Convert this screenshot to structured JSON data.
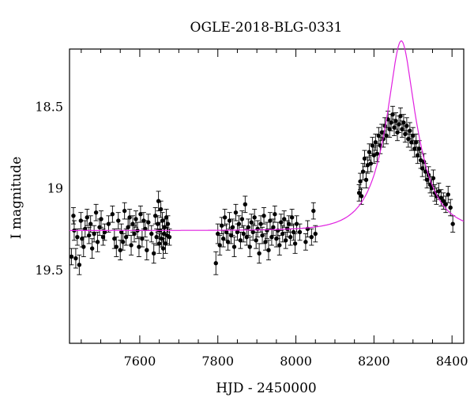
{
  "chart_data": {
    "type": "scatter",
    "title": "OGLE-2018-BLG-0331",
    "xlabel": "HJD - 2450000",
    "ylabel": "I magnitude",
    "xlim": [
      7420,
      8430
    ],
    "ylim": [
      19.95,
      18.15
    ],
    "y_inverted": true,
    "grid": false,
    "x_ticks": [
      7600,
      7800,
      8000,
      8200,
      8400
    ],
    "y_ticks": [
      18.5,
      19,
      19.5
    ],
    "x_tick_labels": [
      "7600",
      "7800",
      "8000",
      "8200",
      "8400"
    ],
    "y_tick_labels": [
      "18.5",
      "19",
      "19.5"
    ],
    "colors": {
      "points": "#000000",
      "model": "#e020e0"
    },
    "model": {
      "type": "microlensing",
      "t0": 8270,
      "u0": 0.36,
      "tE": 78,
      "baseline_mag": 19.26
    },
    "series": [
      {
        "type": "errorbar",
        "points": [
          {
            "x": 7425,
            "y": 19.42,
            "e": 0.05
          },
          {
            "x": 7430,
            "y": 19.17,
            "e": 0.05
          },
          {
            "x": 7432,
            "y": 19.26,
            "e": 0.06
          },
          {
            "x": 7436,
            "y": 19.43,
            "e": 0.06
          },
          {
            "x": 7440,
            "y": 19.3,
            "e": 0.05
          },
          {
            "x": 7445,
            "y": 19.47,
            "e": 0.06
          },
          {
            "x": 7449,
            "y": 19.2,
            "e": 0.05
          },
          {
            "x": 7452,
            "y": 19.31,
            "e": 0.05
          },
          {
            "x": 7456,
            "y": 19.36,
            "e": 0.06
          },
          {
            "x": 7460,
            "y": 19.25,
            "e": 0.05
          },
          {
            "x": 7465,
            "y": 19.18,
            "e": 0.05
          },
          {
            "x": 7470,
            "y": 19.29,
            "e": 0.05
          },
          {
            "x": 7474,
            "y": 19.22,
            "e": 0.05
          },
          {
            "x": 7478,
            "y": 19.37,
            "e": 0.06
          },
          {
            "x": 7483,
            "y": 19.28,
            "e": 0.05
          },
          {
            "x": 7488,
            "y": 19.15,
            "e": 0.05
          },
          {
            "x": 7492,
            "y": 19.33,
            "e": 0.06
          },
          {
            "x": 7497,
            "y": 19.24,
            "e": 0.05
          },
          {
            "x": 7501,
            "y": 19.19,
            "e": 0.05
          },
          {
            "x": 7506,
            "y": 19.3,
            "e": 0.05
          },
          {
            "x": 7510,
            "y": 19.27,
            "e": 0.05
          },
          {
            "x": 7520,
            "y": 19.22,
            "e": 0.05
          },
          {
            "x": 7530,
            "y": 19.16,
            "e": 0.05
          },
          {
            "x": 7535,
            "y": 19.31,
            "e": 0.06
          },
          {
            "x": 7540,
            "y": 19.36,
            "e": 0.06
          },
          {
            "x": 7545,
            "y": 19.2,
            "e": 0.05
          },
          {
            "x": 7550,
            "y": 19.38,
            "e": 0.06
          },
          {
            "x": 7553,
            "y": 19.27,
            "e": 0.05
          },
          {
            "x": 7557,
            "y": 19.33,
            "e": 0.05
          },
          {
            "x": 7561,
            "y": 19.14,
            "e": 0.05
          },
          {
            "x": 7565,
            "y": 19.3,
            "e": 0.05
          },
          {
            "x": 7570,
            "y": 19.24,
            "e": 0.05
          },
          {
            "x": 7574,
            "y": 19.18,
            "e": 0.05
          },
          {
            "x": 7578,
            "y": 19.35,
            "e": 0.06
          },
          {
            "x": 7582,
            "y": 19.22,
            "e": 0.05
          },
          {
            "x": 7586,
            "y": 19.28,
            "e": 0.05
          },
          {
            "x": 7590,
            "y": 19.19,
            "e": 0.05
          },
          {
            "x": 7594,
            "y": 19.26,
            "e": 0.05
          },
          {
            "x": 7598,
            "y": 19.36,
            "e": 0.06
          },
          {
            "x": 7602,
            "y": 19.16,
            "e": 0.05
          },
          {
            "x": 7606,
            "y": 19.31,
            "e": 0.05
          },
          {
            "x": 7610,
            "y": 19.2,
            "e": 0.05
          },
          {
            "x": 7614,
            "y": 19.25,
            "e": 0.05
          },
          {
            "x": 7618,
            "y": 19.38,
            "e": 0.06
          },
          {
            "x": 7622,
            "y": 19.21,
            "e": 0.05
          },
          {
            "x": 7630,
            "y": 19.28,
            "e": 0.05
          },
          {
            "x": 7636,
            "y": 19.4,
            "e": 0.06
          },
          {
            "x": 7640,
            "y": 19.17,
            "e": 0.05
          },
          {
            "x": 7643,
            "y": 19.3,
            "e": 0.05
          },
          {
            "x": 7646,
            "y": 19.22,
            "e": 0.05
          },
          {
            "x": 7648,
            "y": 19.08,
            "e": 0.06
          },
          {
            "x": 7650,
            "y": 19.34,
            "e": 0.06
          },
          {
            "x": 7652,
            "y": 19.26,
            "e": 0.05
          },
          {
            "x": 7654,
            "y": 19.13,
            "e": 0.05
          },
          {
            "x": 7656,
            "y": 19.31,
            "e": 0.05
          },
          {
            "x": 7658,
            "y": 19.2,
            "e": 0.05
          },
          {
            "x": 7660,
            "y": 19.37,
            "e": 0.06
          },
          {
            "x": 7662,
            "y": 19.28,
            "e": 0.05
          },
          {
            "x": 7664,
            "y": 19.24,
            "e": 0.05
          },
          {
            "x": 7666,
            "y": 19.34,
            "e": 0.06
          },
          {
            "x": 7668,
            "y": 19.18,
            "e": 0.05
          },
          {
            "x": 7670,
            "y": 19.29,
            "e": 0.05
          },
          {
            "x": 7672,
            "y": 19.22,
            "e": 0.05
          },
          {
            "x": 7676,
            "y": 19.3,
            "e": 0.05
          },
          {
            "x": 7795,
            "y": 19.46,
            "e": 0.07
          },
          {
            "x": 7800,
            "y": 19.28,
            "e": 0.06
          },
          {
            "x": 7805,
            "y": 19.35,
            "e": 0.06
          },
          {
            "x": 7810,
            "y": 19.23,
            "e": 0.05
          },
          {
            "x": 7814,
            "y": 19.31,
            "e": 0.05
          },
          {
            "x": 7818,
            "y": 19.18,
            "e": 0.05
          },
          {
            "x": 7822,
            "y": 19.27,
            "e": 0.05
          },
          {
            "x": 7826,
            "y": 19.33,
            "e": 0.05
          },
          {
            "x": 7830,
            "y": 19.2,
            "e": 0.05
          },
          {
            "x": 7834,
            "y": 19.29,
            "e": 0.05
          },
          {
            "x": 7838,
            "y": 19.24,
            "e": 0.05
          },
          {
            "x": 7842,
            "y": 19.36,
            "e": 0.06
          },
          {
            "x": 7846,
            "y": 19.15,
            "e": 0.05
          },
          {
            "x": 7850,
            "y": 19.27,
            "e": 0.05
          },
          {
            "x": 7854,
            "y": 19.22,
            "e": 0.05
          },
          {
            "x": 7858,
            "y": 19.32,
            "e": 0.05
          },
          {
            "x": 7862,
            "y": 19.19,
            "e": 0.05
          },
          {
            "x": 7866,
            "y": 19.28,
            "e": 0.05
          },
          {
            "x": 7870,
            "y": 19.1,
            "e": 0.05
          },
          {
            "x": 7874,
            "y": 19.3,
            "e": 0.05
          },
          {
            "x": 7878,
            "y": 19.24,
            "e": 0.05
          },
          {
            "x": 7882,
            "y": 19.36,
            "e": 0.06
          },
          {
            "x": 7886,
            "y": 19.21,
            "e": 0.05
          },
          {
            "x": 7890,
            "y": 19.27,
            "e": 0.05
          },
          {
            "x": 7894,
            "y": 19.18,
            "e": 0.05
          },
          {
            "x": 7898,
            "y": 19.32,
            "e": 0.05
          },
          {
            "x": 7902,
            "y": 19.25,
            "e": 0.05
          },
          {
            "x": 7906,
            "y": 19.4,
            "e": 0.06
          },
          {
            "x": 7910,
            "y": 19.22,
            "e": 0.05
          },
          {
            "x": 7914,
            "y": 19.29,
            "e": 0.05
          },
          {
            "x": 7918,
            "y": 19.17,
            "e": 0.05
          },
          {
            "x": 7922,
            "y": 19.33,
            "e": 0.05
          },
          {
            "x": 7926,
            "y": 19.26,
            "e": 0.05
          },
          {
            "x": 7930,
            "y": 19.38,
            "e": 0.06
          },
          {
            "x": 7934,
            "y": 19.2,
            "e": 0.05
          },
          {
            "x": 7938,
            "y": 19.3,
            "e": 0.05
          },
          {
            "x": 7942,
            "y": 19.24,
            "e": 0.05
          },
          {
            "x": 7946,
            "y": 19.16,
            "e": 0.05
          },
          {
            "x": 7950,
            "y": 19.31,
            "e": 0.05
          },
          {
            "x": 7954,
            "y": 19.26,
            "e": 0.05
          },
          {
            "x": 7958,
            "y": 19.35,
            "e": 0.06
          },
          {
            "x": 7962,
            "y": 19.21,
            "e": 0.05
          },
          {
            "x": 7966,
            "y": 19.28,
            "e": 0.05
          },
          {
            "x": 7970,
            "y": 19.19,
            "e": 0.05
          },
          {
            "x": 7974,
            "y": 19.32,
            "e": 0.05
          },
          {
            "x": 7978,
            "y": 19.25,
            "e": 0.05
          },
          {
            "x": 7982,
            "y": 19.22,
            "e": 0.05
          },
          {
            "x": 7986,
            "y": 19.3,
            "e": 0.05
          },
          {
            "x": 7990,
            "y": 19.18,
            "e": 0.05
          },
          {
            "x": 7994,
            "y": 19.27,
            "e": 0.05
          },
          {
            "x": 7998,
            "y": 19.34,
            "e": 0.06
          },
          {
            "x": 8002,
            "y": 19.22,
            "e": 0.05
          },
          {
            "x": 8010,
            "y": 19.27,
            "e": 0.05
          },
          {
            "x": 8025,
            "y": 19.33,
            "e": 0.05
          },
          {
            "x": 8030,
            "y": 19.25,
            "e": 0.05
          },
          {
            "x": 8040,
            "y": 19.3,
            "e": 0.05
          },
          {
            "x": 8045,
            "y": 19.14,
            "e": 0.05
          },
          {
            "x": 8050,
            "y": 19.28,
            "e": 0.05
          },
          {
            "x": 8162,
            "y": 19.03,
            "e": 0.05
          },
          {
            "x": 8165,
            "y": 18.96,
            "e": 0.05
          },
          {
            "x": 8168,
            "y": 19.05,
            "e": 0.05
          },
          {
            "x": 8172,
            "y": 18.9,
            "e": 0.05
          },
          {
            "x": 8176,
            "y": 18.82,
            "e": 0.05
          },
          {
            "x": 8180,
            "y": 18.95,
            "e": 0.05
          },
          {
            "x": 8184,
            "y": 18.86,
            "e": 0.05
          },
          {
            "x": 8188,
            "y": 18.78,
            "e": 0.05
          },
          {
            "x": 8192,
            "y": 18.85,
            "e": 0.05
          },
          {
            "x": 8196,
            "y": 18.74,
            "e": 0.05
          },
          {
            "x": 8200,
            "y": 18.8,
            "e": 0.05
          },
          {
            "x": 8204,
            "y": 18.72,
            "e": 0.05
          },
          {
            "x": 8208,
            "y": 18.79,
            "e": 0.05
          },
          {
            "x": 8212,
            "y": 18.68,
            "e": 0.05
          },
          {
            "x": 8216,
            "y": 18.74,
            "e": 0.05
          },
          {
            "x": 8220,
            "y": 18.66,
            "e": 0.05
          },
          {
            "x": 8224,
            "y": 18.7,
            "e": 0.05
          },
          {
            "x": 8228,
            "y": 18.62,
            "e": 0.05
          },
          {
            "x": 8232,
            "y": 18.68,
            "e": 0.05
          },
          {
            "x": 8236,
            "y": 18.58,
            "e": 0.05
          },
          {
            "x": 8240,
            "y": 18.64,
            "e": 0.05
          },
          {
            "x": 8244,
            "y": 18.6,
            "e": 0.05
          },
          {
            "x": 8248,
            "y": 18.55,
            "e": 0.05
          },
          {
            "x": 8252,
            "y": 18.63,
            "e": 0.05
          },
          {
            "x": 8256,
            "y": 18.59,
            "e": 0.05
          },
          {
            "x": 8260,
            "y": 18.66,
            "e": 0.05
          },
          {
            "x": 8264,
            "y": 18.61,
            "e": 0.05
          },
          {
            "x": 8268,
            "y": 18.56,
            "e": 0.05
          },
          {
            "x": 8272,
            "y": 18.64,
            "e": 0.05
          },
          {
            "x": 8276,
            "y": 18.6,
            "e": 0.05
          },
          {
            "x": 8280,
            "y": 18.67,
            "e": 0.05
          },
          {
            "x": 8284,
            "y": 18.62,
            "e": 0.05
          },
          {
            "x": 8288,
            "y": 18.7,
            "e": 0.05
          },
          {
            "x": 8292,
            "y": 18.65,
            "e": 0.05
          },
          {
            "x": 8296,
            "y": 18.72,
            "e": 0.05
          },
          {
            "x": 8300,
            "y": 18.68,
            "e": 0.05
          },
          {
            "x": 8304,
            "y": 18.76,
            "e": 0.05
          },
          {
            "x": 8308,
            "y": 18.72,
            "e": 0.05
          },
          {
            "x": 8312,
            "y": 18.8,
            "e": 0.05
          },
          {
            "x": 8316,
            "y": 18.76,
            "e": 0.05
          },
          {
            "x": 8320,
            "y": 18.83,
            "e": 0.05
          },
          {
            "x": 8324,
            "y": 18.88,
            "e": 0.05
          },
          {
            "x": 8328,
            "y": 18.84,
            "e": 0.05
          },
          {
            "x": 8332,
            "y": 18.9,
            "e": 0.05
          },
          {
            "x": 8336,
            "y": 18.95,
            "e": 0.05
          },
          {
            "x": 8340,
            "y": 18.92,
            "e": 0.05
          },
          {
            "x": 8344,
            "y": 18.98,
            "e": 0.05
          },
          {
            "x": 8348,
            "y": 19.0,
            "e": 0.05
          },
          {
            "x": 8352,
            "y": 18.94,
            "e": 0.05
          },
          {
            "x": 8356,
            "y": 19.03,
            "e": 0.05
          },
          {
            "x": 8360,
            "y": 19.05,
            "e": 0.05
          },
          {
            "x": 8366,
            "y": 19.02,
            "e": 0.05
          },
          {
            "x": 8372,
            "y": 19.06,
            "e": 0.05
          },
          {
            "x": 8378,
            "y": 19.08,
            "e": 0.05
          },
          {
            "x": 8384,
            "y": 19.1,
            "e": 0.05
          },
          {
            "x": 8390,
            "y": 19.04,
            "e": 0.05
          },
          {
            "x": 8396,
            "y": 19.12,
            "e": 0.05
          },
          {
            "x": 8402,
            "y": 19.22,
            "e": 0.05
          }
        ]
      }
    ]
  }
}
